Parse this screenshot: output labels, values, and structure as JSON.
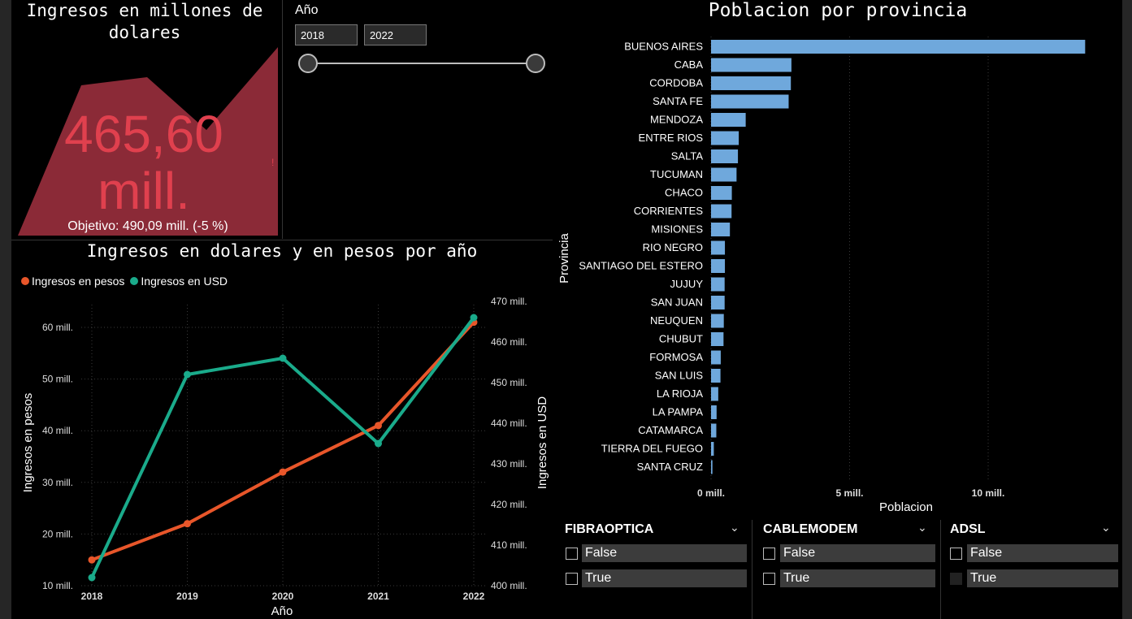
{
  "kpi": {
    "title": "Ingresos en millones de dolares",
    "value_line1": "465,60",
    "value_line2": "mill.",
    "target": "Objetivo: 490,09 mill. (-5 %)",
    "fill_color": "#8b2a37",
    "value_color": "#e0404e"
  },
  "year_slicer": {
    "label": "Año",
    "start": "2018",
    "end": "2022"
  },
  "line_chart": {
    "title": "Ingresos en dolares y en pesos por año",
    "legend": [
      "Ingresos en pesos",
      "Ingresos en USD"
    ],
    "ylabel_left": "Ingresos en pesos",
    "ylabel_right": "Ingresos en USD",
    "xlabel": "Año",
    "left_ticks": [
      "10 mill.",
      "20 mill.",
      "30 mill.",
      "40 mill.",
      "50 mill.",
      "60 mill."
    ],
    "right_ticks": [
      "400 mill.",
      "410 mill.",
      "420 mill.",
      "430 mill.",
      "440 mill.",
      "450 mill.",
      "460 mill.",
      "470 mill."
    ],
    "x_ticks": [
      "2018",
      "2019",
      "2020",
      "2021",
      "2022"
    ]
  },
  "bar_chart": {
    "title": "Poblacion por provincia",
    "ylabel": "Provincia",
    "xlabel": "Poblacion",
    "x_ticks": [
      "0 mill.",
      "5 mill.",
      "10 mill."
    ]
  },
  "chart_data": [
    {
      "type": "line",
      "x": [
        2018,
        2019,
        2020,
        2021,
        2022
      ],
      "series": [
        {
          "name": "Ingresos en pesos",
          "axis": "left",
          "color": "#e8562a",
          "values": [
            15,
            22,
            32,
            41,
            61
          ]
        },
        {
          "name": "Ingresos en USD",
          "axis": "right",
          "color": "#1aab8b",
          "values": [
            402,
            452,
            456,
            435,
            466
          ]
        }
      ],
      "ylim_left": [
        10,
        65
      ],
      "ylim_right": [
        400,
        470
      ],
      "grid": true,
      "legend": "top-left"
    },
    {
      "type": "bar",
      "orientation": "horizontal",
      "color": "#6fa8dc",
      "categories": [
        "BUENOS AIRES",
        "CABA",
        "CORDOBA",
        "SANTA FE",
        "MENDOZA",
        "ENTRE RIOS",
        "SALTA",
        "TUCUMAN",
        "CHACO",
        "CORRIENTES",
        "MISIONES",
        "RIO NEGRO",
        "SANTIAGO DEL ESTERO",
        "JUJUY",
        "SAN JUAN",
        "NEUQUEN",
        "CHUBUT",
        "FORMOSA",
        "SAN LUIS",
        "LA RIOJA",
        "LA PAMPA",
        "CATAMARCA",
        "TIERRA DEL FUEGO",
        "SANTA CRUZ"
      ],
      "values": [
        13.5,
        2.9,
        2.88,
        2.8,
        1.25,
        1.0,
        0.97,
        0.92,
        0.75,
        0.74,
        0.68,
        0.5,
        0.5,
        0.49,
        0.49,
        0.46,
        0.45,
        0.35,
        0.34,
        0.26,
        0.2,
        0.19,
        0.1,
        0.05
      ],
      "xlim": [
        0,
        13.8
      ],
      "grid": true
    }
  ],
  "filters": [
    {
      "title": "FIBRAOPTICA",
      "options": [
        "False",
        "True"
      ]
    },
    {
      "title": "CABLEMODEM",
      "options": [
        "False",
        "True"
      ]
    },
    {
      "title": "ADSL",
      "options": [
        "False",
        "True"
      ]
    }
  ]
}
